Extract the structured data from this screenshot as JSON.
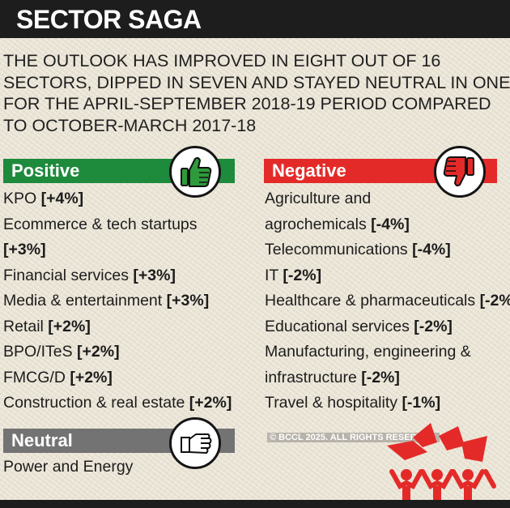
{
  "header": {
    "title": "SECTOR SAGA"
  },
  "intro": {
    "lines": [
      "THE OUTLOOK HAS IMPROVED IN EIGHT OUT OF 16",
      "SECTORS, DIPPED IN SEVEN AND STAYED NEUTRAL IN ONE",
      "FOR THE APRIL-SEPTEMBER 2018-19 PERIOD COMPARED",
      "TO OCTOBER-MARCH 2017-18"
    ]
  },
  "positive": {
    "label": "Positive",
    "color": "#1e8a3c",
    "icon": "thumbs-up-icon",
    "items": [
      {
        "lines": [
          "KPO"
        ],
        "pct": "[+4%]"
      },
      {
        "lines": [
          "Ecommerce & tech startups"
        ],
        "pct": "[+3%]",
        "pct_own_line": true
      },
      {
        "lines": [
          "Financial services"
        ],
        "pct": "[+3%]"
      },
      {
        "lines": [
          "Media & entertainment"
        ],
        "pct": "[+3%]"
      },
      {
        "lines": [
          "Retail"
        ],
        "pct": "[+2%]"
      },
      {
        "lines": [
          "BPO/ITeS"
        ],
        "pct": "[+2%]"
      },
      {
        "lines": [
          "FMCG/D"
        ],
        "pct": "[+2%]"
      },
      {
        "lines": [
          "Construction & real estate"
        ],
        "pct": "[+2%]"
      }
    ]
  },
  "negative": {
    "label": "Negative",
    "color": "#e42a28",
    "icon": "thumbs-down-icon",
    "items": [
      {
        "lines": [
          "Agriculture and",
          "agrochemicals"
        ],
        "pct": "[-4%]"
      },
      {
        "lines": [
          "Telecommunications"
        ],
        "pct": "[-4%]"
      },
      {
        "lines": [
          "IT"
        ],
        "pct": "[-2%]"
      },
      {
        "lines": [
          "Healthcare & pharmaceuticals"
        ],
        "pct": "[-2%"
      },
      {
        "lines": [
          "Educational services"
        ],
        "pct": "[-2%]"
      },
      {
        "lines": [
          "Manufacturing, engineering &",
          "infrastructure"
        ],
        "pct": "[-2%]"
      },
      {
        "lines": [
          "Travel & hospitality"
        ],
        "pct": "[-1%]"
      }
    ]
  },
  "neutral": {
    "label": "Neutral",
    "color": "#737373",
    "icon": "flat-hand-icon",
    "items": [
      {
        "lines": [
          "Power and Energy"
        ],
        "pct": ""
      }
    ]
  },
  "copyright": "© BCCL 2025. ALL RIGHTS RESERVED.",
  "decoration": {
    "icon": "red-figures-icon",
    "color": "#e42a28"
  }
}
